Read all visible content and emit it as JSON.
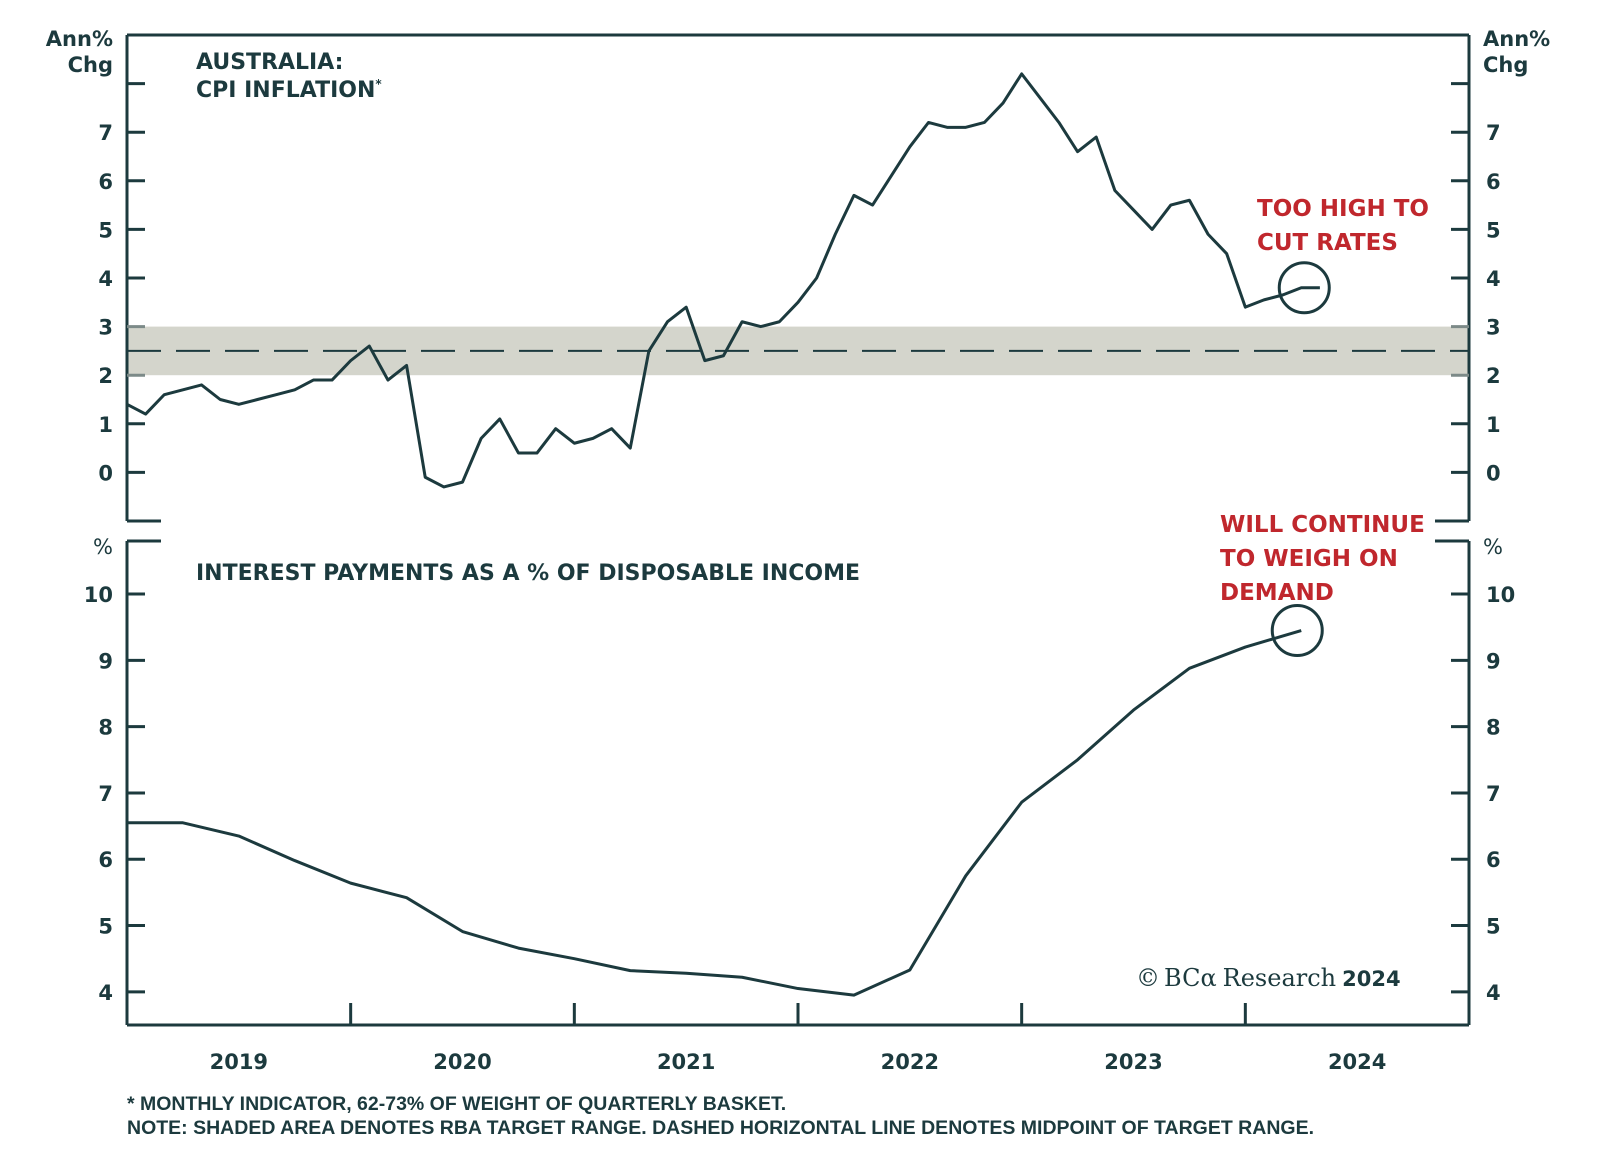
{
  "chart_data": [
    {
      "type": "line",
      "title": "AUSTRALIA:",
      "subtitle": "CPI INFLATION",
      "title_marker": "*",
      "ylabel_left": [
        "Ann%",
        "Chg"
      ],
      "ylabel_right": [
        "Ann%",
        "Chg"
      ],
      "ylim": [
        -1,
        9
      ],
      "yticks": [
        -1,
        0,
        1,
        2,
        3,
        4,
        5,
        6,
        7,
        8
      ],
      "ytick_labels": [
        "0",
        "1",
        "2",
        "3",
        "4",
        "5",
        "6",
        "7"
      ],
      "frequency": "monthly",
      "start": "2019-01",
      "series": [
        {
          "name": "CPI inflation (monthly indicator)",
          "values": [
            1.4,
            1.2,
            1.6,
            1.7,
            1.8,
            1.5,
            1.4,
            1.5,
            1.6,
            1.7,
            1.9,
            1.9,
            2.3,
            2.6,
            1.9,
            2.2,
            -0.1,
            -0.3,
            -0.2,
            0.7,
            1.1,
            0.4,
            0.4,
            0.9,
            0.6,
            0.7,
            0.9,
            0.5,
            2.5,
            3.1,
            3.4,
            2.3,
            2.4,
            3.1,
            3.0,
            3.1,
            3.5,
            4.0,
            4.9,
            5.7,
            5.5,
            6.1,
            6.7,
            7.2,
            7.1,
            7.1,
            7.2,
            7.6,
            8.2,
            7.7,
            7.2,
            6.6,
            6.9,
            5.8,
            5.4,
            5.0,
            5.5,
            5.6,
            4.9,
            4.5,
            3.4,
            3.55,
            3.65,
            3.8,
            3.8
          ]
        }
      ],
      "target_band": {
        "low": 2,
        "high": 3,
        "midpoint": 2.5,
        "label": "RBA target range"
      },
      "annotation": {
        "lines": [
          "TOO HIGH TO",
          "CUT RATES"
        ],
        "color": "#c0272d"
      }
    },
    {
      "type": "line",
      "title": "INTEREST PAYMENTS AS A % OF DISPOSABLE INCOME",
      "ylabel_left": "%",
      "ylabel_right": "%",
      "ylim": [
        3.5,
        10.8
      ],
      "yticks": [
        4,
        5,
        6,
        7,
        8,
        9,
        10
      ],
      "frequency": "quarterly",
      "start": "2019-Q1",
      "series": [
        {
          "name": "Interest payments % of disposable income",
          "values": [
            6.55,
            6.55,
            6.35,
            5.98,
            5.64,
            5.42,
            4.91,
            4.66,
            4.5,
            4.32,
            4.28,
            4.22,
            4.05,
            3.95,
            4.33,
            5.75,
            6.86,
            7.5,
            8.25,
            8.88,
            9.2,
            9.45
          ]
        }
      ],
      "annotation": {
        "lines": [
          "WILL CONTINUE",
          "TO WEIGH ON",
          "DEMAND"
        ],
        "color": "#c0272d"
      }
    }
  ],
  "x_axis": {
    "range": [
      "2019-01",
      "2024-12"
    ],
    "tick_labels": [
      "2019",
      "2020",
      "2021",
      "2022",
      "2023",
      "2024"
    ]
  },
  "copyright": {
    "symbol": "©",
    "brand": "BCα",
    "text": "Research",
    "year": "2024"
  },
  "footnotes": [
    "* MONTHLY INDICATOR, 62-73% OF WEIGHT OF QUARTERLY BASKET.",
    "NOTE: SHADED AREA DENOTES RBA TARGET RANGE. DASHED HORIZONTAL LINE DENOTES MIDPOINT OF TARGET RANGE."
  ],
  "colors": {
    "ink": "#1c3a3e",
    "accent": "#c0272d",
    "band": "#d4d5cc"
  }
}
